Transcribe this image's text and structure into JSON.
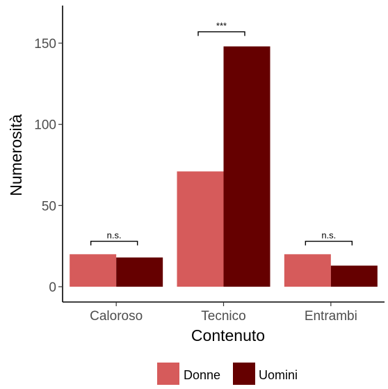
{
  "chart_data": {
    "type": "bar",
    "categories": [
      "Caloroso",
      "Tecnico",
      "Entrambi"
    ],
    "series": [
      {
        "name": "Donne",
        "values": [
          20,
          71,
          20
        ],
        "color": "#d65b5b"
      },
      {
        "name": "Uomini",
        "values": [
          18,
          148,
          13
        ],
        "color": "#650000"
      }
    ],
    "xlabel": "Contenuto",
    "ylabel": "Numerosità",
    "ylim": [
      0,
      170
    ],
    "yticks": [
      0,
      50,
      100,
      150
    ],
    "grid": false,
    "legend": {
      "position": "bottom",
      "entries": [
        "Donne",
        "Uomini"
      ]
    },
    "annotations": [
      {
        "category": "Caloroso",
        "label": "n.s.",
        "bracket_y": 28
      },
      {
        "category": "Tecnico",
        "label": "***",
        "bracket_y": 157
      },
      {
        "category": "Entrambi",
        "label": "n.s.",
        "bracket_y": 28
      }
    ]
  }
}
